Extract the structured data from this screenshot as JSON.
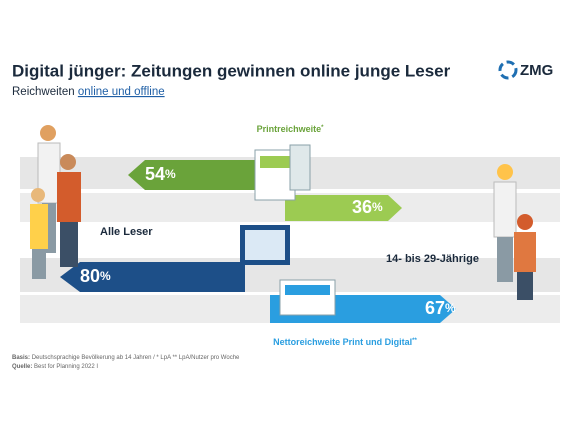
{
  "header": {
    "title": "Digital jünger: Zeitungen gewinnen online junge Leser",
    "subtitle_prefix": "Reichweiten",
    "subtitle_link": "online und offline",
    "logo": "ZMG"
  },
  "unit": "%",
  "audiences": [
    "Alle Leser",
    "14- bis 29-Jährige"
  ],
  "rows": [
    {
      "name": "Printreichweite",
      "footnote": "*",
      "values": [
        54,
        36
      ]
    },
    {
      "name": "Nettoreichweite Print und Digital",
      "footnote": "**",
      "values": [
        80,
        67
      ]
    }
  ],
  "notes": {
    "basis_label": "Basis:",
    "basis": "Deutschsprachige Bevölkerung ab 14 Jahren / * LpA ** LpA/Nutzer pro Woche",
    "source_label": "Quelle:",
    "source": "Best for Planning 2022 I"
  }
}
